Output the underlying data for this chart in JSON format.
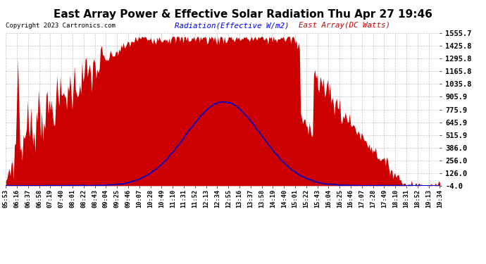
{
  "title": "East Array Power & Effective Solar Radiation Thu Apr 27 19:46",
  "copyright": "Copyright 2023 Cartronics.com",
  "legend_radiation": "Radiation(Effective W/m2)",
  "legend_east": "East Array(DC Watts)",
  "ylabel_right_ticks": [
    1555.7,
    1425.8,
    1295.8,
    1165.8,
    1035.8,
    905.9,
    775.9,
    645.9,
    515.9,
    386.0,
    256.0,
    126.0,
    -4.0
  ],
  "ymin": -4.0,
  "ymax": 1555.7,
  "background_color": "#ffffff",
  "plot_bg_color": "#ffffff",
  "grid_color": "#999999",
  "red_fill_color": "#cc0000",
  "blue_line_color": "#0000cc",
  "title_color": "#000000",
  "copyright_color": "#000000",
  "radiation_label_color": "#0000ff",
  "east_array_label_color": "#cc0000",
  "x_tick_labels": [
    "05:53",
    "06:16",
    "06:37",
    "06:58",
    "07:19",
    "07:40",
    "08:01",
    "08:22",
    "08:43",
    "09:04",
    "09:25",
    "09:46",
    "10:07",
    "10:28",
    "10:49",
    "11:10",
    "11:31",
    "11:52",
    "12:13",
    "12:34",
    "12:55",
    "13:16",
    "13:37",
    "13:58",
    "14:19",
    "14:40",
    "15:01",
    "15:22",
    "15:43",
    "16:04",
    "16:25",
    "16:46",
    "17:07",
    "17:28",
    "17:49",
    "18:10",
    "18:31",
    "18:52",
    "19:13",
    "19:34"
  ],
  "n_points": 400
}
